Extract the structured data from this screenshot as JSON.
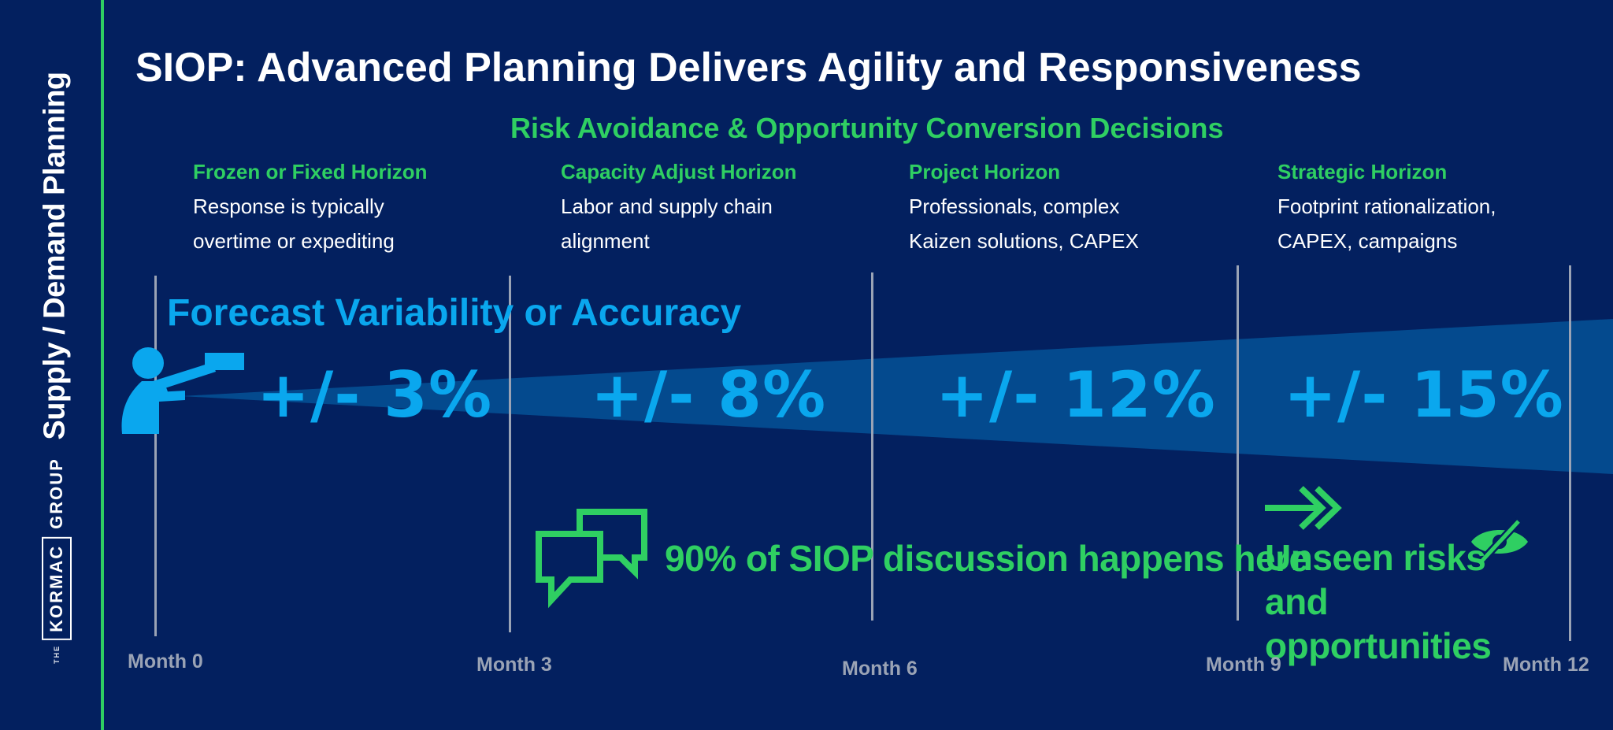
{
  "sidebar": {
    "vertical_title": "Supply / Demand Planning",
    "logo": "THE KORMAC GROUP"
  },
  "title": "SIOP: Advanced Planning Delivers Agility and Responsiveness",
  "subtitle": "Risk Avoidance & Opportunity Conversion Decisions",
  "horizons": [
    {
      "title": "Frozen or Fixed Horizon",
      "desc": "Response is typically overtime or expediting"
    },
    {
      "title": "Capacity Adjust Horizon",
      "desc": "Labor and supply chain alignment"
    },
    {
      "title": "Project Horizon",
      "desc": "Professionals, complex Kaizen solutions, CAPEX"
    },
    {
      "title": "Strategic Horizon",
      "desc": "Footprint rationalization, CAPEX, campaigns"
    }
  ],
  "forecast": {
    "label": "Forecast Variability or Accuracy",
    "values": [
      "+/- 3%",
      "+/- 8%",
      "+/- 12%",
      "+/- 15%"
    ]
  },
  "months": [
    "Month 0",
    "Month 3",
    "Month 6",
    "Month 9",
    "Month 12"
  ],
  "callouts": {
    "siop": "90% of SIOP discussion happens here",
    "unseen": "Unseen risks and opportunities"
  },
  "colors": {
    "background": "#03205f",
    "accent_green": "#2fcf62",
    "accent_blue": "#0aa7ee",
    "cone": "#044a8e",
    "grid": "#9aa3b5"
  },
  "icons": [
    "telescope-person-icon",
    "chat-bubbles-icon",
    "double-arrow-icon",
    "eye-slash-icon"
  ]
}
